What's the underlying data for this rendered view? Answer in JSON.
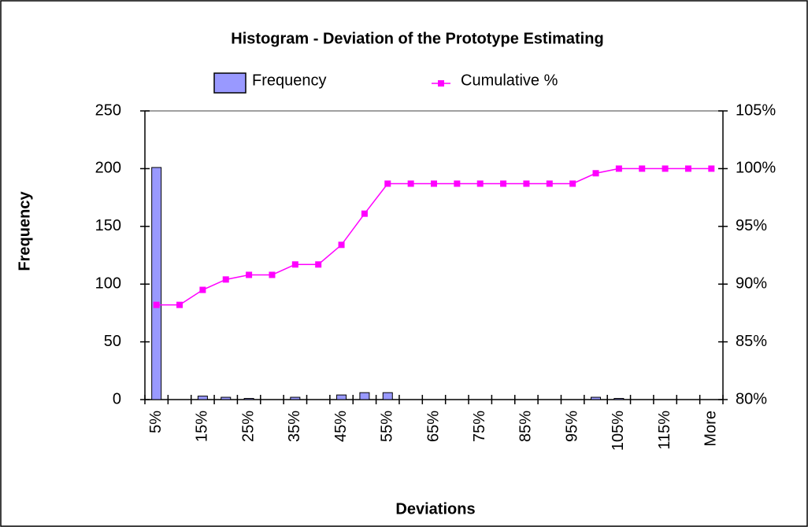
{
  "chart_data": {
    "type": "bar",
    "title": "Histogram - Deviation of the Prototype Estimating",
    "x_label": "Deviations",
    "y_label": "Frequency",
    "categories": [
      "5%",
      null,
      "15%",
      null,
      "25%",
      null,
      "35%",
      null,
      "45%",
      null,
      "55%",
      null,
      "65%",
      null,
      "75%",
      null,
      "85%",
      null,
      "95%",
      null,
      "105%",
      null,
      "115%",
      null,
      "More"
    ],
    "series": [
      {
        "name": "Frequency",
        "type": "bar",
        "color": "#9999ff",
        "values": [
          201,
          0,
          3,
          2,
          1,
          0,
          2,
          0,
          4,
          6,
          6,
          0,
          0,
          0,
          0,
          0,
          0,
          0,
          0,
          2,
          1,
          0,
          0,
          0,
          0
        ]
      },
      {
        "name": "Cumulative %",
        "type": "line",
        "axis": "y2",
        "color": "#ff00ff",
        "values": [
          88.2,
          88.2,
          89.5,
          90.4,
          90.8,
          90.8,
          91.7,
          91.7,
          93.4,
          96.1,
          98.7,
          98.7,
          98.7,
          98.7,
          98.7,
          98.7,
          98.7,
          98.7,
          98.7,
          99.6,
          100,
          100,
          100,
          100,
          100
        ]
      }
    ],
    "ylim": [
      0,
      250
    ],
    "yticks": [
      0,
      50,
      100,
      150,
      200,
      250
    ],
    "y2lim": [
      80,
      105
    ],
    "y2ticks": [
      {
        "value": 80,
        "label": "80%"
      },
      {
        "value": 85,
        "label": "85%"
      },
      {
        "value": 90,
        "label": "90%"
      },
      {
        "value": 95,
        "label": "95%"
      },
      {
        "value": 100,
        "label": "100%"
      },
      {
        "value": 105,
        "label": "105%"
      }
    ],
    "grid": false,
    "legend": "top"
  }
}
